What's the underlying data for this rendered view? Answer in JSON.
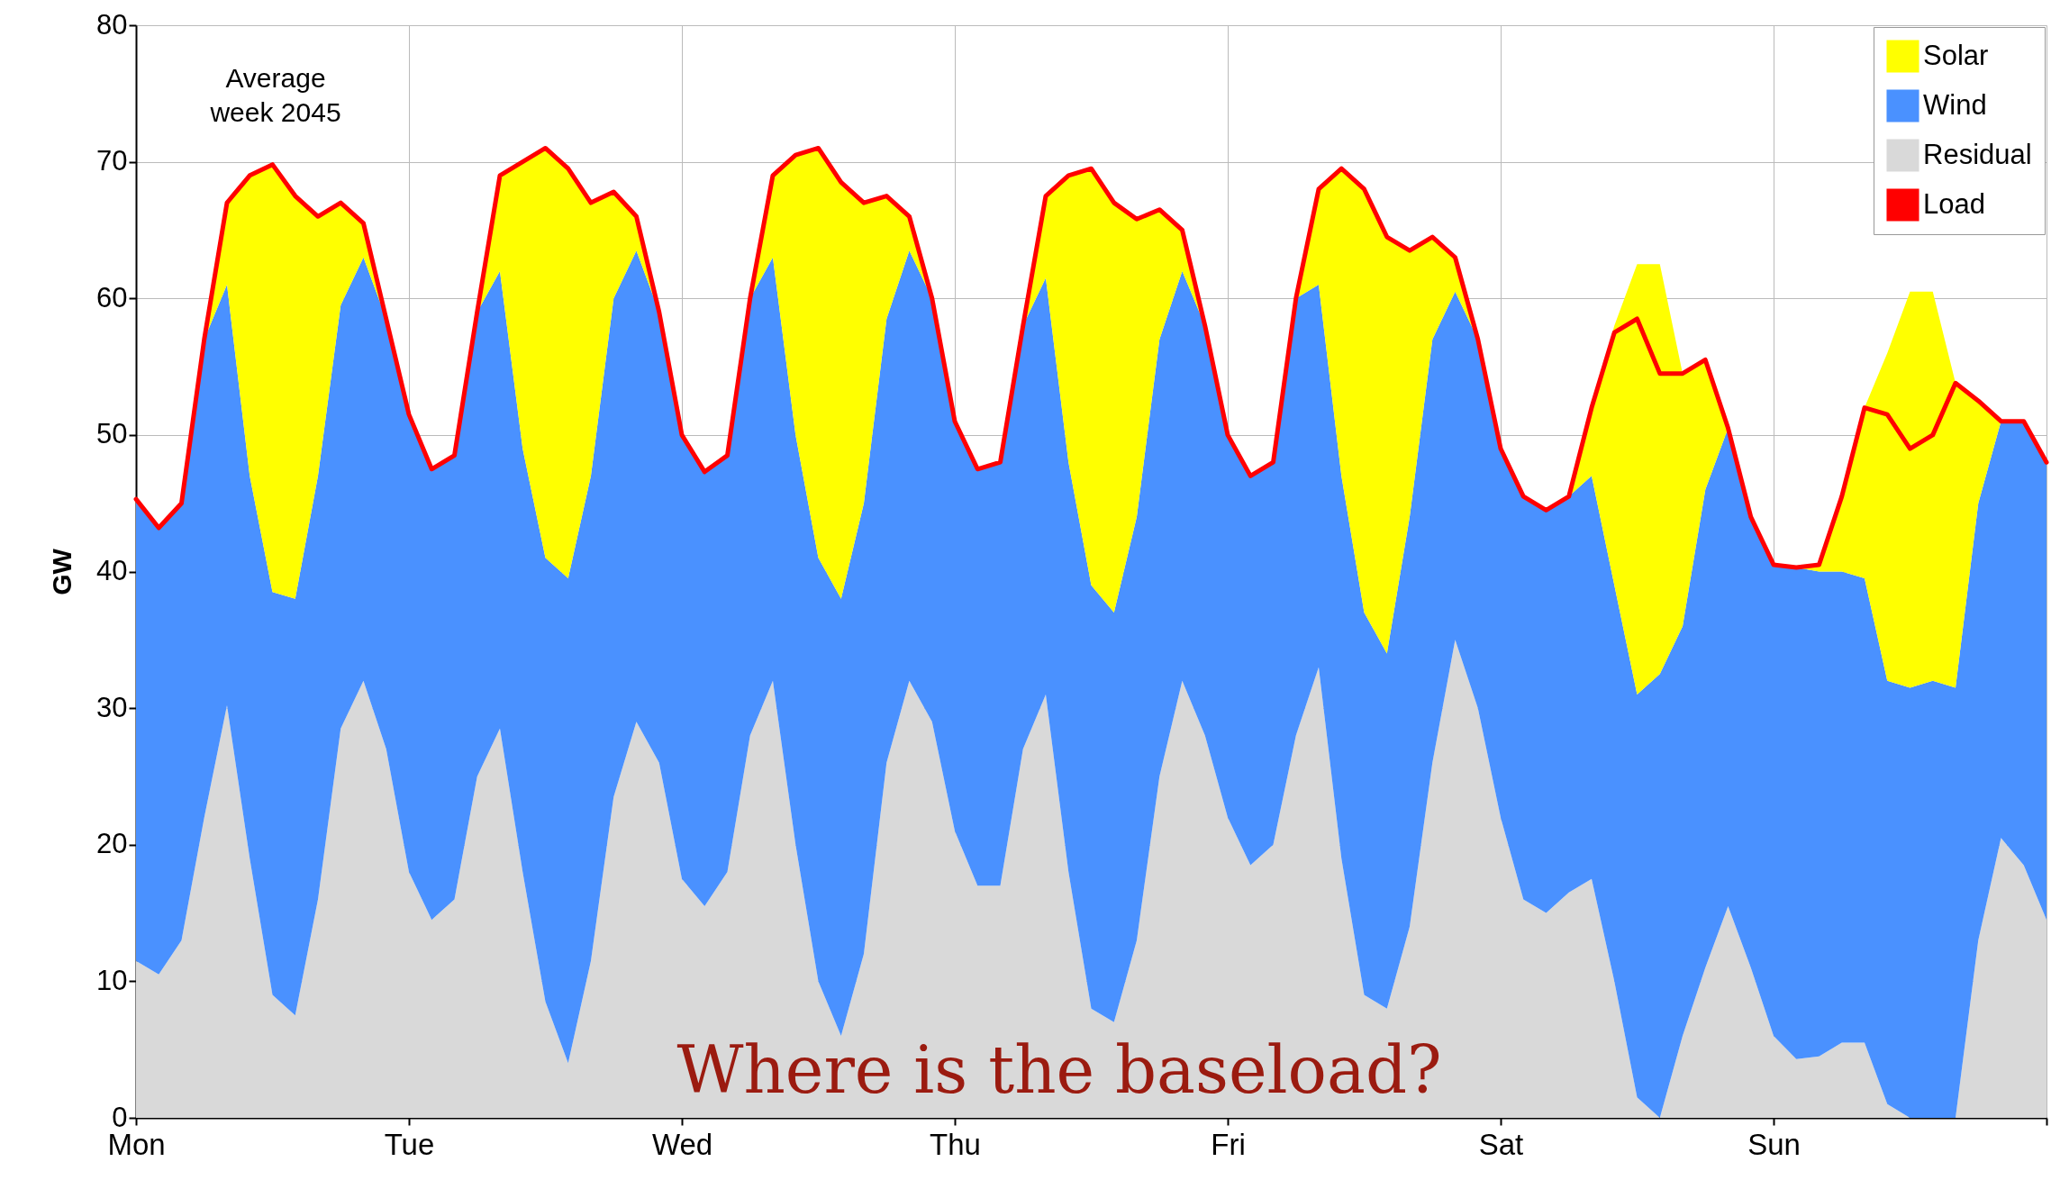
{
  "chart_data": {
    "type": "area",
    "stacked": true,
    "ylabel": "GW",
    "annotations": [
      "Average\nweek 2045",
      "Where is the baseload?"
    ],
    "categories": [
      "Mon",
      null,
      null,
      null,
      null,
      null,
      null,
      null,
      null,
      null,
      null,
      null,
      "Tue",
      null,
      null,
      null,
      null,
      null,
      null,
      null,
      null,
      null,
      null,
      null,
      "Wed",
      null,
      null,
      null,
      null,
      null,
      null,
      null,
      null,
      null,
      null,
      null,
      "Thu",
      null,
      null,
      null,
      null,
      null,
      null,
      null,
      null,
      null,
      null,
      null,
      "Fri",
      null,
      null,
      null,
      null,
      null,
      null,
      null,
      null,
      null,
      null,
      null,
      "Sat",
      null,
      null,
      null,
      null,
      null,
      null,
      null,
      null,
      null,
      null,
      null,
      "Sun",
      null,
      null,
      null,
      null,
      null,
      null,
      null,
      null,
      null,
      null,
      null,
      null
    ],
    "series": [
      {
        "name": "Residual",
        "color": "#d9d9d9",
        "values": [
          11.5,
          10.5,
          13,
          22,
          30.2,
          19,
          9,
          7.5,
          16,
          28.5,
          32,
          27,
          18,
          14.5,
          16,
          25,
          28.5,
          18,
          8.5,
          4,
          11.5,
          23.5,
          29,
          26,
          17.5,
          15.5,
          18,
          28,
          32,
          20,
          10,
          6,
          12,
          26,
          32,
          29,
          21,
          17,
          17,
          27,
          31,
          18,
          8,
          7,
          13,
          25,
          32,
          28,
          22,
          18.5,
          20,
          28,
          33,
          19,
          9,
          8,
          14,
          26,
          35,
          30,
          22,
          16,
          15,
          16.5,
          17.5,
          10,
          1.5,
          0,
          6,
          11,
          15.5,
          11,
          6,
          4.3,
          4.5,
          5.5,
          5.5,
          1,
          0,
          0,
          0,
          13,
          20.5,
          18.5,
          14.5
        ]
      },
      {
        "name": "Wind",
        "color": "#4a91ff",
        "values": [
          33.8,
          32.7,
          32,
          35,
          30.8,
          28,
          29.5,
          30.5,
          31,
          31,
          31,
          31.5,
          33.5,
          33,
          32.5,
          34,
          33.5,
          31,
          32.5,
          35.5,
          35.5,
          36.5,
          34.5,
          33,
          32.5,
          31.8,
          30.5,
          32,
          31,
          30,
          31,
          32,
          33,
          32.5,
          31.5,
          31,
          30,
          30.5,
          31,
          31,
          30.5,
          30,
          31,
          30,
          31,
          32,
          30,
          30,
          28,
          28.5,
          28,
          32,
          28,
          28,
          28,
          26,
          30,
          31,
          25.5,
          27,
          27,
          29.5,
          29.5,
          29,
          29.5,
          29,
          29.5,
          32.5,
          30,
          35,
          35,
          33,
          34.5,
          36,
          35.5,
          34.5,
          34,
          31,
          31.5,
          32,
          31.5,
          32,
          30.5,
          32.5,
          33.5
        ]
      },
      {
        "name": "Solar",
        "color": "#ffff00",
        "values": [
          0,
          0,
          0,
          0,
          6,
          22,
          31.3,
          29.5,
          19,
          7.5,
          2.5,
          0,
          0,
          0,
          0,
          0,
          7,
          21,
          30,
          30,
          20,
          7.8,
          2.5,
          0,
          0,
          0,
          0,
          0,
          6,
          20.5,
          30,
          30.5,
          22,
          9,
          2.5,
          0,
          0,
          0,
          0,
          0,
          6,
          21,
          30.5,
          30,
          21.8,
          9.5,
          3,
          0,
          0,
          0,
          0,
          0,
          7,
          22.5,
          31,
          30.5,
          19.5,
          7.5,
          2.5,
          0,
          0,
          0,
          0,
          0,
          5,
          19,
          31.5,
          30,
          18.5,
          9.5,
          0,
          0,
          0,
          0,
          0.5,
          5.5,
          12.5,
          24,
          29,
          28.5,
          22.3,
          7.5,
          0,
          0,
          0
        ]
      },
      {
        "name": "Load",
        "type": "line",
        "color": "#ff0000",
        "values": [
          45.3,
          43.2,
          45,
          57,
          67,
          69,
          69.8,
          67.5,
          66,
          67,
          65.5,
          58.5,
          51.5,
          47.5,
          48.5,
          59,
          69,
          70,
          71,
          69.5,
          67,
          67.8,
          66,
          59,
          50,
          47.3,
          48.5,
          60,
          69,
          70.5,
          71,
          68.5,
          67,
          67.5,
          66,
          60,
          51,
          47.5,
          48,
          58,
          67.5,
          69,
          69.5,
          67,
          65.8,
          66.5,
          65,
          58,
          50,
          47,
          48,
          60,
          68,
          69.5,
          68,
          64.5,
          63.5,
          64.5,
          63,
          57,
          49,
          45.5,
          44.5,
          45.5,
          52,
          57.5,
          58.5,
          54.5,
          54.5,
          55.5,
          50.5,
          44,
          40.5,
          40.3,
          40.5,
          45.5,
          52,
          51.5,
          49,
          50,
          53.8,
          52.5,
          51,
          51,
          48
        ]
      }
    ],
    "ylim": [
      0,
      80
    ],
    "yticks": [
      0,
      10,
      20,
      30,
      40,
      50,
      60,
      70,
      80
    ],
    "grid": true,
    "legend": "top right"
  }
}
